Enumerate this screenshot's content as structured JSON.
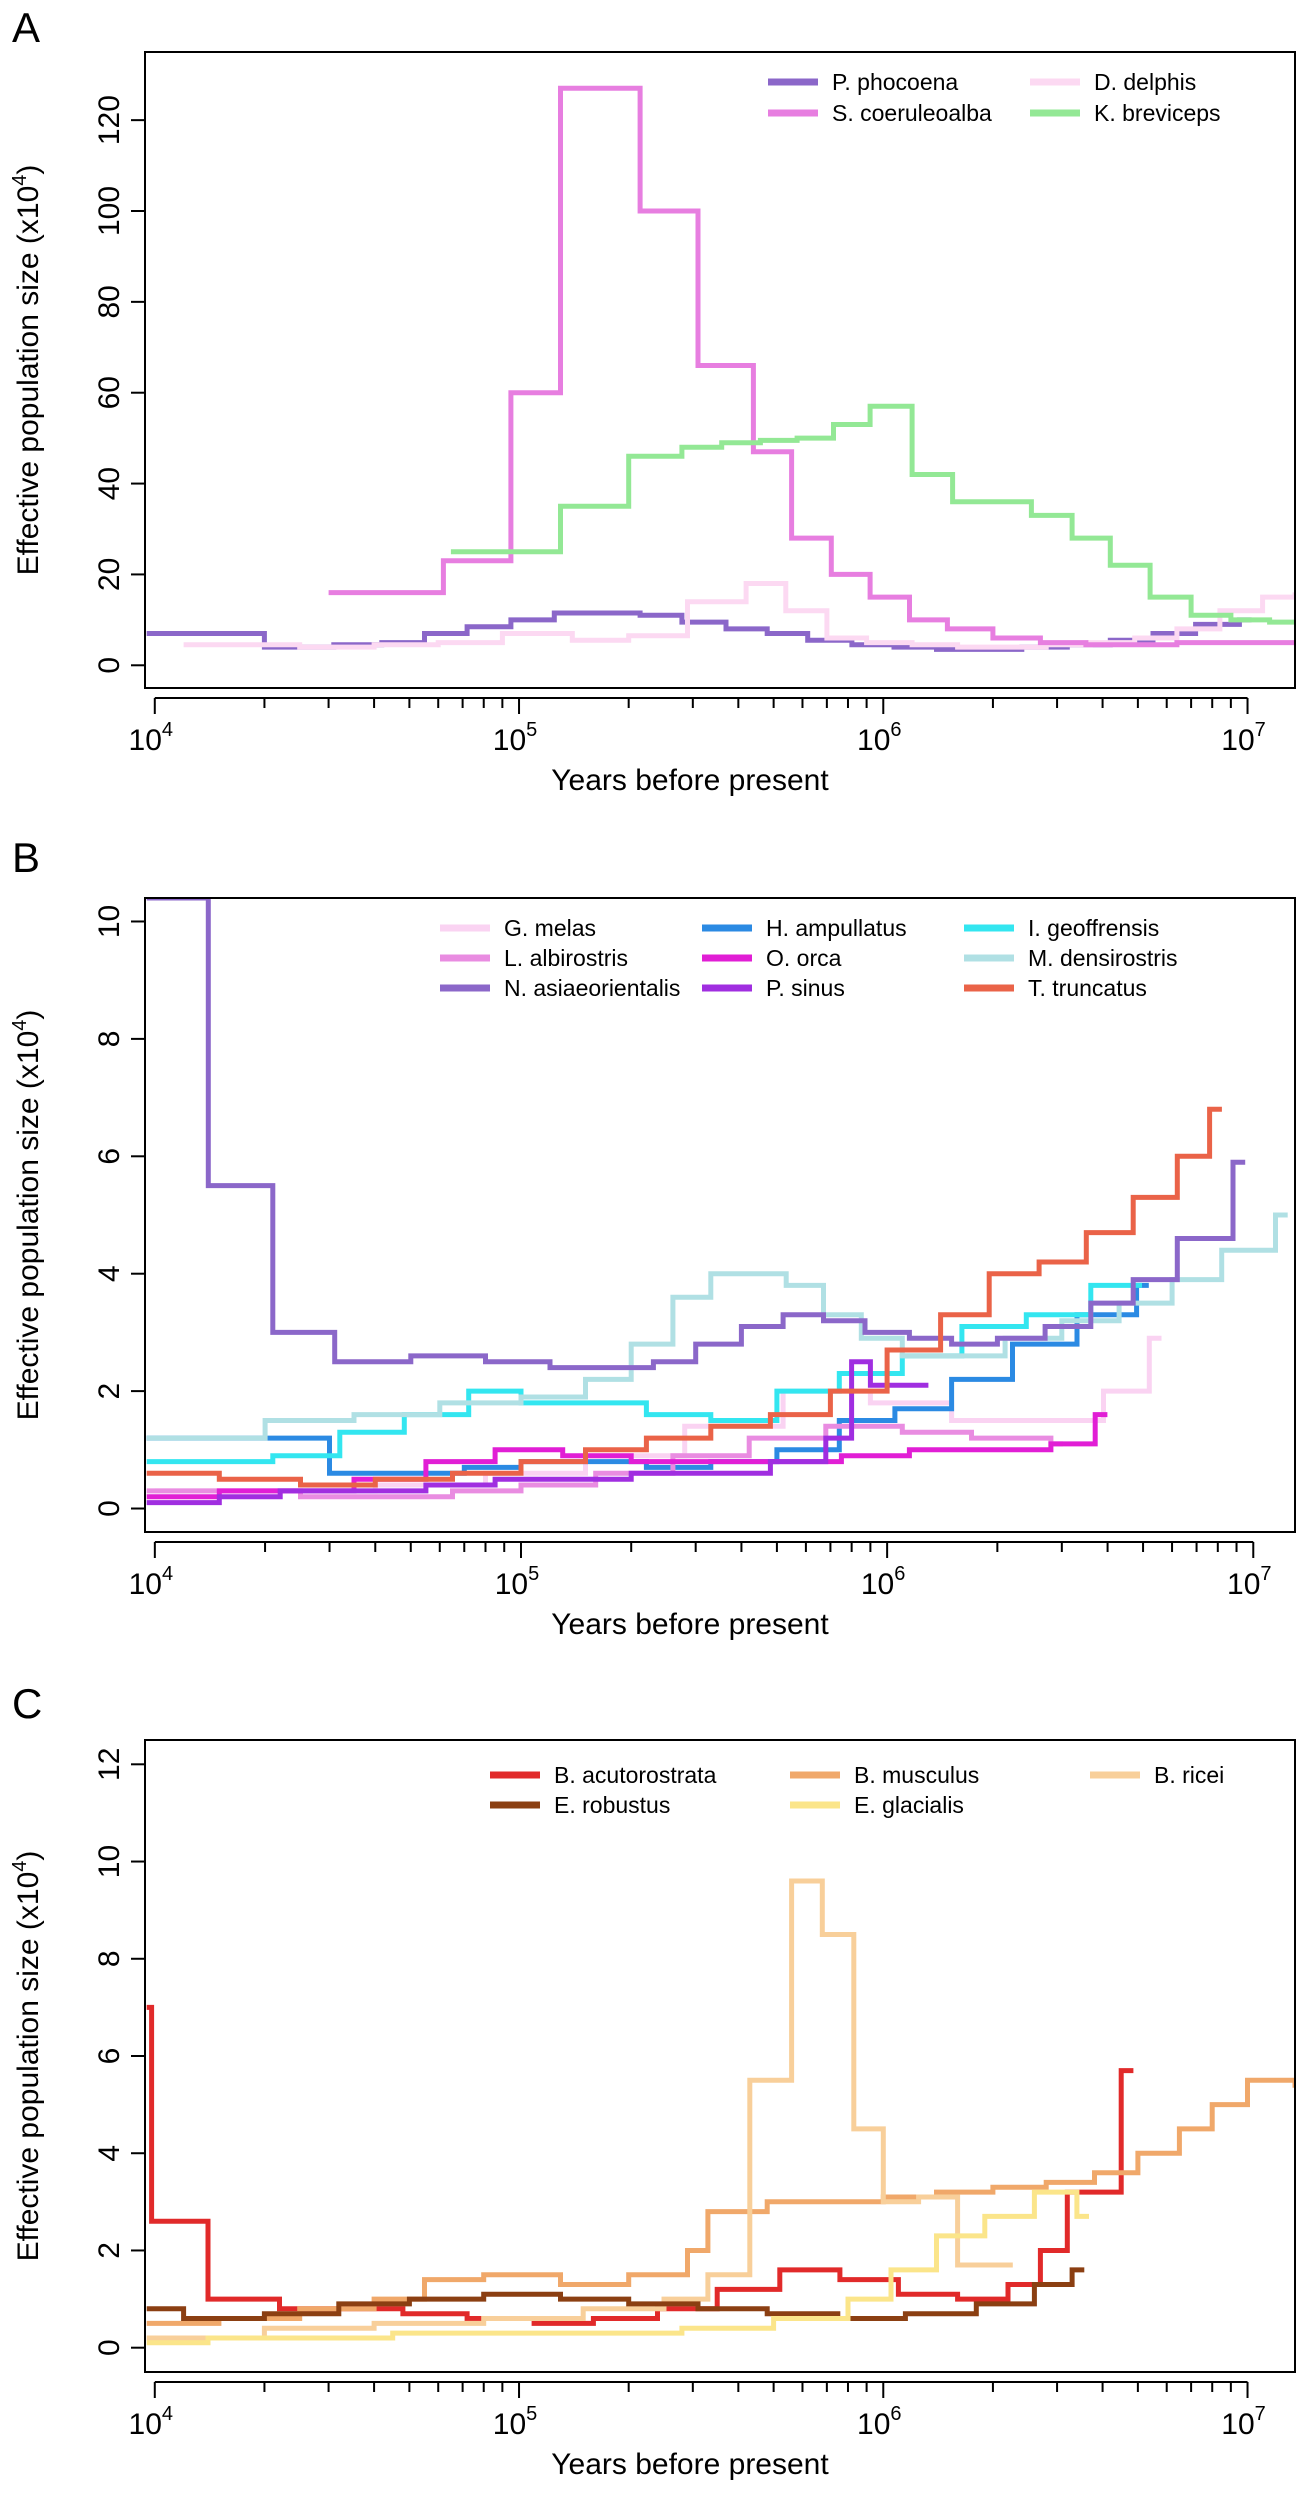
{
  "chart_data": [
    {
      "panel": "A",
      "type": "line",
      "xscale": "log",
      "xlabel": "Years before present",
      "ylabel": "Effective population size (x10",
      "ylabel_sup": "4",
      "ylabel_end": ")",
      "xlim": [
        9400,
        13500000
      ],
      "ylim": [
        -5,
        135
      ],
      "yticks": [
        0,
        20,
        40,
        60,
        80,
        100,
        120
      ],
      "xticks": [
        {
          "base": "10",
          "exp": "4",
          "v": 10000
        },
        {
          "base": "10",
          "exp": "5",
          "v": 100000
        },
        {
          "base": "10",
          "exp": "6",
          "v": 1000000
        },
        {
          "base": "10",
          "exp": "7",
          "v": 10000000
        }
      ],
      "legend_columns": 2,
      "series": [
        {
          "name": "P. phocoena",
          "color": "#8b67c9",
          "x": [
            9500,
            20000,
            31000,
            42000,
            55000,
            72000,
            95000,
            125000,
            165000,
            215000,
            280000,
            370000,
            480000,
            620000,
            820000,
            1070000,
            1400000,
            1850000,
            2400000,
            3200000,
            4200000,
            5500000,
            7200000,
            9500000
          ],
          "y": [
            7,
            4,
            4.5,
            5,
            7,
            8.5,
            10,
            11.5,
            11.5,
            11,
            9.5,
            8,
            7,
            5.5,
            4.5,
            4,
            3.5,
            3.5,
            4,
            4.5,
            5.5,
            7,
            9,
            10
          ]
        },
        {
          "name": "D. delphis",
          "color": "#fcd9f2",
          "x": [
            12000,
            25000,
            40000,
            60000,
            90000,
            140000,
            200000,
            290000,
            420000,
            540000,
            700000,
            900000,
            1200000,
            1600000,
            2100000,
            2800000,
            3700000,
            4900000,
            6400000,
            8400000,
            11000000,
            13500000
          ],
          "y": [
            4.5,
            4,
            4.5,
            5,
            7,
            5.5,
            6.5,
            14,
            18,
            12,
            6,
            5,
            4.5,
            4,
            4,
            4.5,
            5,
            6,
            8,
            12,
            15,
            15.5
          ]
        },
        {
          "name": "S. coeruleoalba",
          "color": "#e77ee0",
          "x": [
            30000,
            62000,
            95000,
            130000,
            215000,
            310000,
            440000,
            560000,
            720000,
            920000,
            1180000,
            1500000,
            2000000,
            2700000,
            3600000,
            4800000,
            6400000,
            8500000,
            11000000,
            13500000
          ],
          "y": [
            16,
            23,
            60,
            127,
            100,
            66,
            47,
            28,
            20,
            15,
            10,
            8,
            6,
            5,
            4.5,
            4.5,
            5,
            5,
            5,
            5
          ]
        },
        {
          "name": "K. breviceps",
          "color": "#93e895",
          "x": [
            65000,
            130000,
            200000,
            280000,
            360000,
            460000,
            580000,
            730000,
            920000,
            1200000,
            1550000,
            2000000,
            2550000,
            3300000,
            4200000,
            5400000,
            7000000,
            9000000,
            11500000,
            13500000
          ],
          "y": [
            25,
            35,
            46,
            48,
            49,
            49.5,
            50,
            53,
            57,
            42,
            36,
            36,
            33,
            28,
            22,
            15,
            11,
            10,
            9.5,
            9.5
          ]
        }
      ]
    },
    {
      "panel": "B",
      "type": "line",
      "xscale": "log",
      "xlabel": "Years before present",
      "ylabel": "Effective population size (x10",
      "ylabel_sup": "4",
      "ylabel_end": ")",
      "xlim": [
        9400,
        13000000
      ],
      "ylim": [
        -0.4,
        10.4
      ],
      "yticks": [
        0,
        2,
        4,
        6,
        8,
        10
      ],
      "xticks": [
        {
          "base": "10",
          "exp": "4",
          "v": 10000
        },
        {
          "base": "10",
          "exp": "5",
          "v": 100000
        },
        {
          "base": "10",
          "exp": "6",
          "v": 1000000
        },
        {
          "base": "10",
          "exp": "7",
          "v": 10000000
        }
      ],
      "legend_columns": 3,
      "series": [
        {
          "name": "G. melas",
          "color": "#fad3f2",
          "x": [
            10000,
            20000,
            40000,
            80000,
            150000,
            280000,
            520000,
            900000,
            1500000,
            2500000,
            3900000,
            5200000
          ],
          "y": [
            0.3,
            0.3,
            0.4,
            0.6,
            0.9,
            1.4,
            2,
            1.8,
            1.5,
            1.5,
            2,
            2.9
          ]
        },
        {
          "name": "H. ampullatus",
          "color": "#2b8ae3",
          "x": [
            9500,
            20000,
            30000,
            45000,
            70000,
            100000,
            150000,
            220000,
            330000,
            500000,
            740000,
            1050000,
            1500000,
            2200000,
            3300000,
            4800000
          ],
          "y": [
            1.2,
            1.2,
            0.6,
            0.6,
            0.7,
            0.8,
            0.8,
            0.7,
            0.8,
            1,
            1.5,
            1.7,
            2.2,
            2.8,
            3.3,
            3.8
          ]
        },
        {
          "name": "I. geoffrensis",
          "color": "#33e6f0",
          "x": [
            9500,
            14000,
            21000,
            32000,
            48000,
            72000,
            100000,
            150000,
            220000,
            330000,
            500000,
            740000,
            1100000,
            1600000,
            2400000,
            3600000,
            4600000
          ],
          "y": [
            0.8,
            0.8,
            0.9,
            1.3,
            1.6,
            2,
            1.8,
            1.8,
            1.6,
            1.5,
            2,
            2.3,
            2.6,
            3.1,
            3.3,
            3.8,
            3.8
          ]
        },
        {
          "name": "L. albirostris",
          "color": "#e98ce1",
          "x": [
            9500,
            15000,
            25000,
            40000,
            65000,
            100000,
            160000,
            260000,
            420000,
            680000,
            1100000,
            1700000,
            2400000,
            2800000
          ],
          "y": [
            0.3,
            0.3,
            0.2,
            0.2,
            0.3,
            0.4,
            0.6,
            0.9,
            1.2,
            1.4,
            1.3,
            1.2,
            1.2,
            1.1
          ]
        },
        {
          "name": "O. orca",
          "color": "#e11ed5",
          "x": [
            9500,
            15000,
            22000,
            35000,
            55000,
            85000,
            130000,
            200000,
            310000,
            480000,
            750000,
            1150000,
            1800000,
            2800000,
            3700000
          ],
          "y": [
            0.2,
            0.3,
            0.3,
            0.5,
            0.8,
            1,
            0.9,
            0.8,
            0.8,
            0.8,
            0.9,
            1,
            1,
            1.1,
            1.6
          ]
        },
        {
          "name": "M. densirostris",
          "color": "#b0e0e4",
          "x": [
            9500,
            20000,
            35000,
            60000,
            100000,
            150000,
            200000,
            260000,
            330000,
            420000,
            530000,
            670000,
            850000,
            1100000,
            1500000,
            2100000,
            3000000,
            4300000,
            6000000,
            8200000,
            11500000
          ],
          "y": [
            1.2,
            1.5,
            1.6,
            1.8,
            1.9,
            2.2,
            2.8,
            3.6,
            4,
            4,
            3.8,
            3.3,
            2.9,
            2.6,
            2.6,
            2.9,
            3.2,
            3.5,
            3.9,
            4.4,
            5
          ]
        },
        {
          "name": "N. asiaeorientalis",
          "color": "#8b67c9",
          "x": [
            9500,
            13000,
            14000,
            21000,
            31000,
            50000,
            80000,
            120000,
            170000,
            230000,
            300000,
            400000,
            520000,
            670000,
            870000,
            1150000,
            1500000,
            2000000,
            2700000,
            3600000,
            4700000,
            6200000,
            8800000
          ],
          "y": [
            10.4,
            10.4,
            5.5,
            3,
            2.5,
            2.6,
            2.5,
            2.4,
            2.4,
            2.5,
            2.8,
            3.1,
            3.3,
            3.2,
            3,
            2.9,
            2.8,
            2.9,
            3.1,
            3.5,
            3.9,
            4.6,
            5.9
          ]
        },
        {
          "name": "P. sinus",
          "color": "#a02ee0",
          "x": [
            9500,
            15000,
            22000,
            35000,
            55000,
            85000,
            130000,
            200000,
            310000,
            480000,
            680000,
            800000,
            900000,
            1000000,
            1200000
          ],
          "y": [
            0.1,
            0.2,
            0.3,
            0.3,
            0.4,
            0.5,
            0.5,
            0.6,
            0.6,
            0.8,
            1.2,
            2.5,
            2.1,
            2.1,
            2.1
          ]
        },
        {
          "name": "T. truncatus",
          "color": "#ea6348",
          "x": [
            9500,
            15000,
            25000,
            40000,
            65000,
            100000,
            150000,
            220000,
            330000,
            480000,
            700000,
            1000000,
            1400000,
            1900000,
            2600000,
            3500000,
            4700000,
            6200000,
            7600000
          ],
          "y": [
            0.6,
            0.5,
            0.4,
            0.5,
            0.6,
            0.8,
            1,
            1.2,
            1.4,
            1.6,
            2,
            2.7,
            3.3,
            4,
            4.2,
            4.7,
            5.3,
            6,
            6.8
          ]
        }
      ]
    },
    {
      "panel": "C",
      "type": "line",
      "xscale": "log",
      "xlabel": "Years before present",
      "ylabel": "Effective population size (x10",
      "ylabel_sup": "4",
      "ylabel_end": ")",
      "xlim": [
        9400,
        13500000
      ],
      "ylim": [
        -0.5,
        12.5
      ],
      "yticks": [
        0,
        2,
        4,
        6,
        8,
        10,
        12
      ],
      "xticks": [
        {
          "base": "10",
          "exp": "4",
          "v": 10000
        },
        {
          "base": "10",
          "exp": "5",
          "v": 100000
        },
        {
          "base": "10",
          "exp": "6",
          "v": 1000000
        },
        {
          "base": "10",
          "exp": "7",
          "v": 10000000
        }
      ],
      "legend_columns": 3,
      "series": [
        {
          "name": "B. acutorostrata",
          "color": "#e12a2a",
          "x": [
            9500,
            9800,
            14000,
            22000,
            32000,
            48000,
            72000,
            110000,
            160000,
            240000,
            350000,
            520000,
            760000,
            1100000,
            1600000,
            2200000,
            2700000,
            3200000,
            4500000
          ],
          "y": [
            7,
            2.6,
            1,
            0.8,
            0.8,
            0.7,
            0.6,
            0.5,
            0.6,
            0.8,
            1.2,
            1.6,
            1.4,
            1.1,
            1,
            1.3,
            2,
            3.2,
            5.7
          ]
        },
        {
          "name": "B. musculus",
          "color": "#f0a86a",
          "x": [
            9500,
            15000,
            25000,
            40000,
            55000,
            80000,
            130000,
            200000,
            290000,
            330000,
            480000,
            700000,
            1000000,
            1400000,
            2000000,
            2800000,
            3800000,
            5000000,
            6500000,
            8000000,
            10000000,
            13500000
          ],
          "y": [
            0.5,
            0.6,
            0.8,
            1,
            1.4,
            1.5,
            1.3,
            1.5,
            2,
            2.8,
            3,
            3,
            3.1,
            3.2,
            3.3,
            3.4,
            3.6,
            4,
            4.5,
            5,
            5.5,
            5.4
          ]
        },
        {
          "name": "B. ricei",
          "color": "#f8cf9a",
          "x": [
            9500,
            20000,
            40000,
            80000,
            150000,
            250000,
            330000,
            430000,
            560000,
            680000,
            830000,
            1000000,
            1250000,
            1600000,
            2100000
          ],
          "y": [
            0.2,
            0.4,
            0.5,
            0.6,
            0.8,
            1,
            1.5,
            5.5,
            9.6,
            8.5,
            4.5,
            3,
            3.1,
            1.7,
            1.7
          ]
        },
        {
          "name": "E. robustus",
          "color": "#8b3f12",
          "x": [
            9500,
            12000,
            20000,
            32000,
            50000,
            80000,
            130000,
            200000,
            310000,
            480000,
            750000,
            1150000,
            1800000,
            2600000,
            3300000
          ],
          "y": [
            0.8,
            0.6,
            0.7,
            0.9,
            1,
            1.1,
            1,
            0.9,
            0.8,
            0.7,
            0.6,
            0.7,
            0.9,
            1.3,
            1.6
          ]
        },
        {
          "name": "E. glacialis",
          "color": "#fbe58a",
          "x": [
            9500,
            14000,
            25000,
            45000,
            80000,
            150000,
            280000,
            500000,
            800000,
            1050000,
            1400000,
            1900000,
            2600000,
            3400000
          ],
          "y": [
            0.1,
            0.2,
            0.2,
            0.3,
            0.3,
            0.3,
            0.4,
            0.6,
            1,
            1.6,
            2.3,
            2.7,
            3.2,
            2.7
          ]
        }
      ]
    }
  ]
}
